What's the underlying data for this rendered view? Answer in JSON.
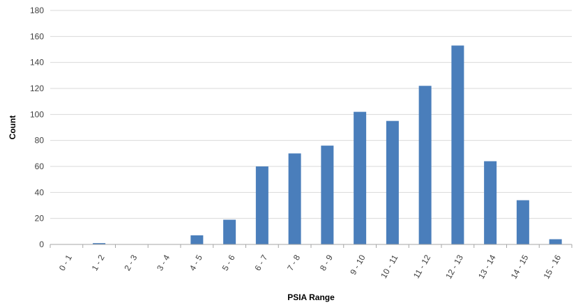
{
  "chart_data": {
    "type": "bar",
    "title": "",
    "xlabel": "PSIA Range",
    "ylabel": "Count",
    "ylim": [
      0,
      180
    ],
    "yticks": [
      0,
      20,
      40,
      60,
      80,
      100,
      120,
      140,
      160,
      180
    ],
    "grid": true,
    "legend": "none",
    "bar_color": "#4a7ebb",
    "categories": [
      "0 - 1",
      "1 - 2",
      "2 - 3",
      "3 - 4",
      "4 - 5",
      "5 - 6",
      "6 - 7",
      "7 - 8",
      "8 - 9",
      "9 - 10",
      "10 - 11",
      "11 - 12",
      "12 - 13",
      "13 - 14",
      "14 - 15",
      "15 - 16"
    ],
    "values": [
      0,
      1,
      0,
      0,
      7,
      19,
      60,
      70,
      76,
      102,
      95,
      122,
      153,
      64,
      34,
      4
    ]
  }
}
